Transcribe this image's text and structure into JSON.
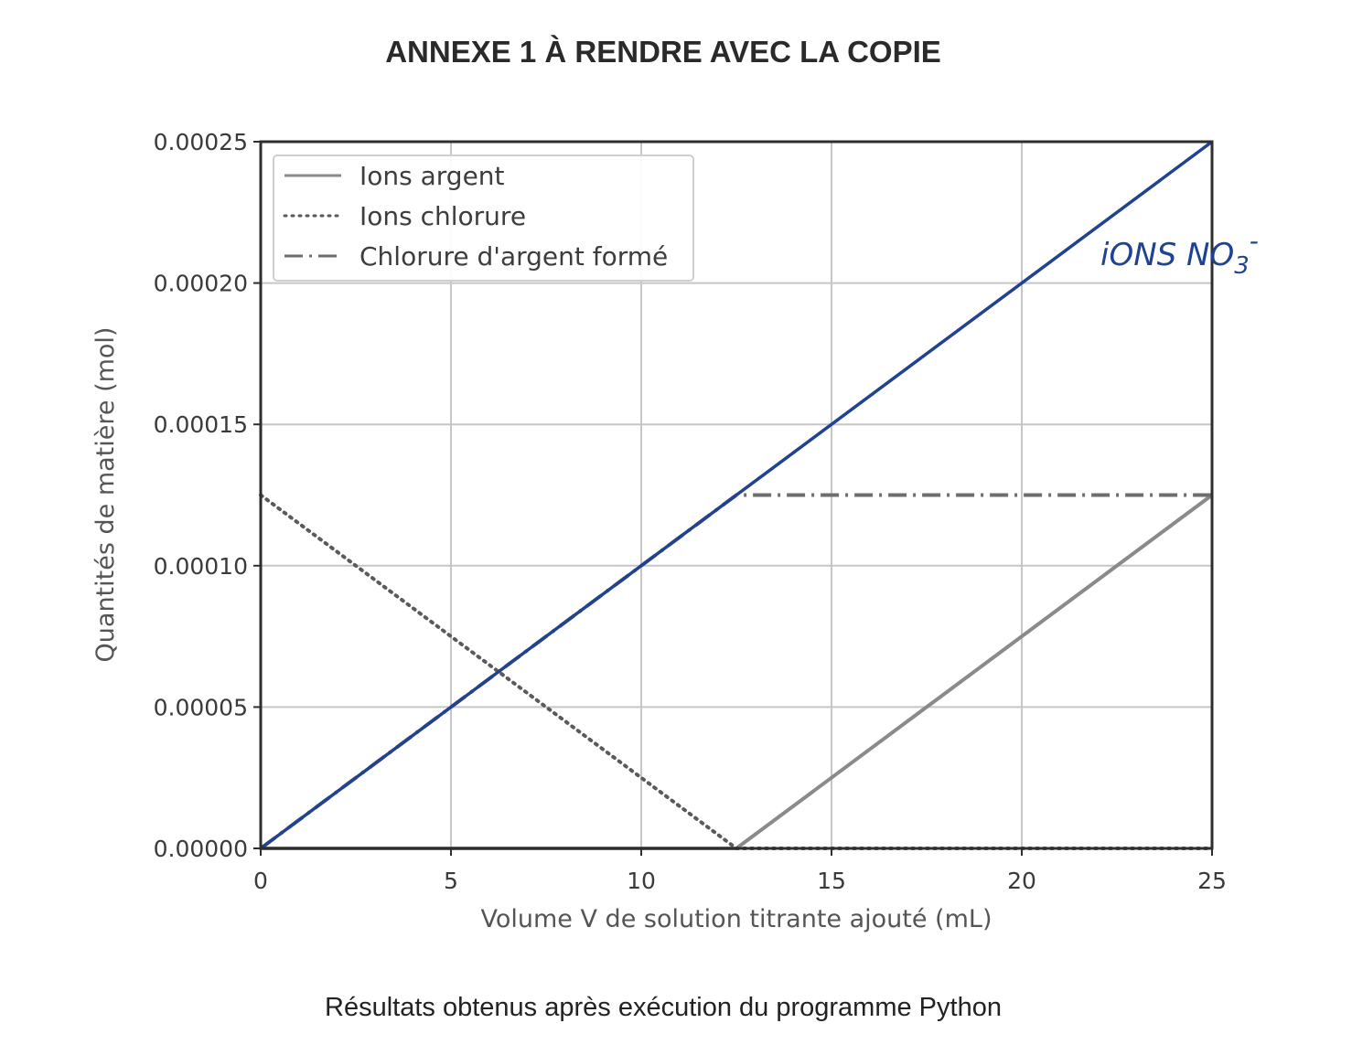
{
  "page": {
    "title": "ANNEXE 1 À RENDRE AVEC LA COPIE",
    "caption": "Résultats obtenus après exécution du programme Python"
  },
  "chart_data": {
    "type": "line",
    "xlabel": "Volume V de solution titrante ajouté (mL)",
    "ylabel": "Quantités de matière (mol)",
    "xlim": [
      0,
      25
    ],
    "ylim": [
      0,
      0.00025
    ],
    "xticks": [
      0,
      5,
      10,
      15,
      20,
      25
    ],
    "xtick_labels": [
      "0",
      "5",
      "10",
      "15",
      "20",
      "25"
    ],
    "yticks": [
      0,
      5e-05,
      0.0001,
      0.00015,
      0.0002,
      0.00025
    ],
    "ytick_labels": [
      "0.00000",
      "0.00005",
      "0.00010",
      "0.00015",
      "0.00020",
      "0.00025"
    ],
    "grid": true,
    "legend_position": "top-left",
    "series": [
      {
        "name": "Ions argent",
        "style": "solid",
        "color": "#8a8a8a",
        "x": [
          0,
          12.5,
          25
        ],
        "y": [
          0,
          0,
          0.000125
        ]
      },
      {
        "name": "Ions chlorure",
        "style": "dotted",
        "color": "#5a5a5a",
        "x": [
          0,
          12.5,
          25
        ],
        "y": [
          0.000125,
          0,
          0
        ]
      },
      {
        "name": "Chlorure d'argent formé",
        "style": "dashdot",
        "color": "#6e6e6e",
        "x": [
          0,
          12.5,
          25
        ],
        "y": [
          0,
          0.000125,
          0.000125
        ]
      }
    ],
    "annotations": [
      {
        "label": "ions NO3-",
        "style": "handwritten",
        "color": "#1f4390",
        "x": [
          0,
          25
        ],
        "y": [
          0,
          0.00025
        ]
      }
    ]
  }
}
